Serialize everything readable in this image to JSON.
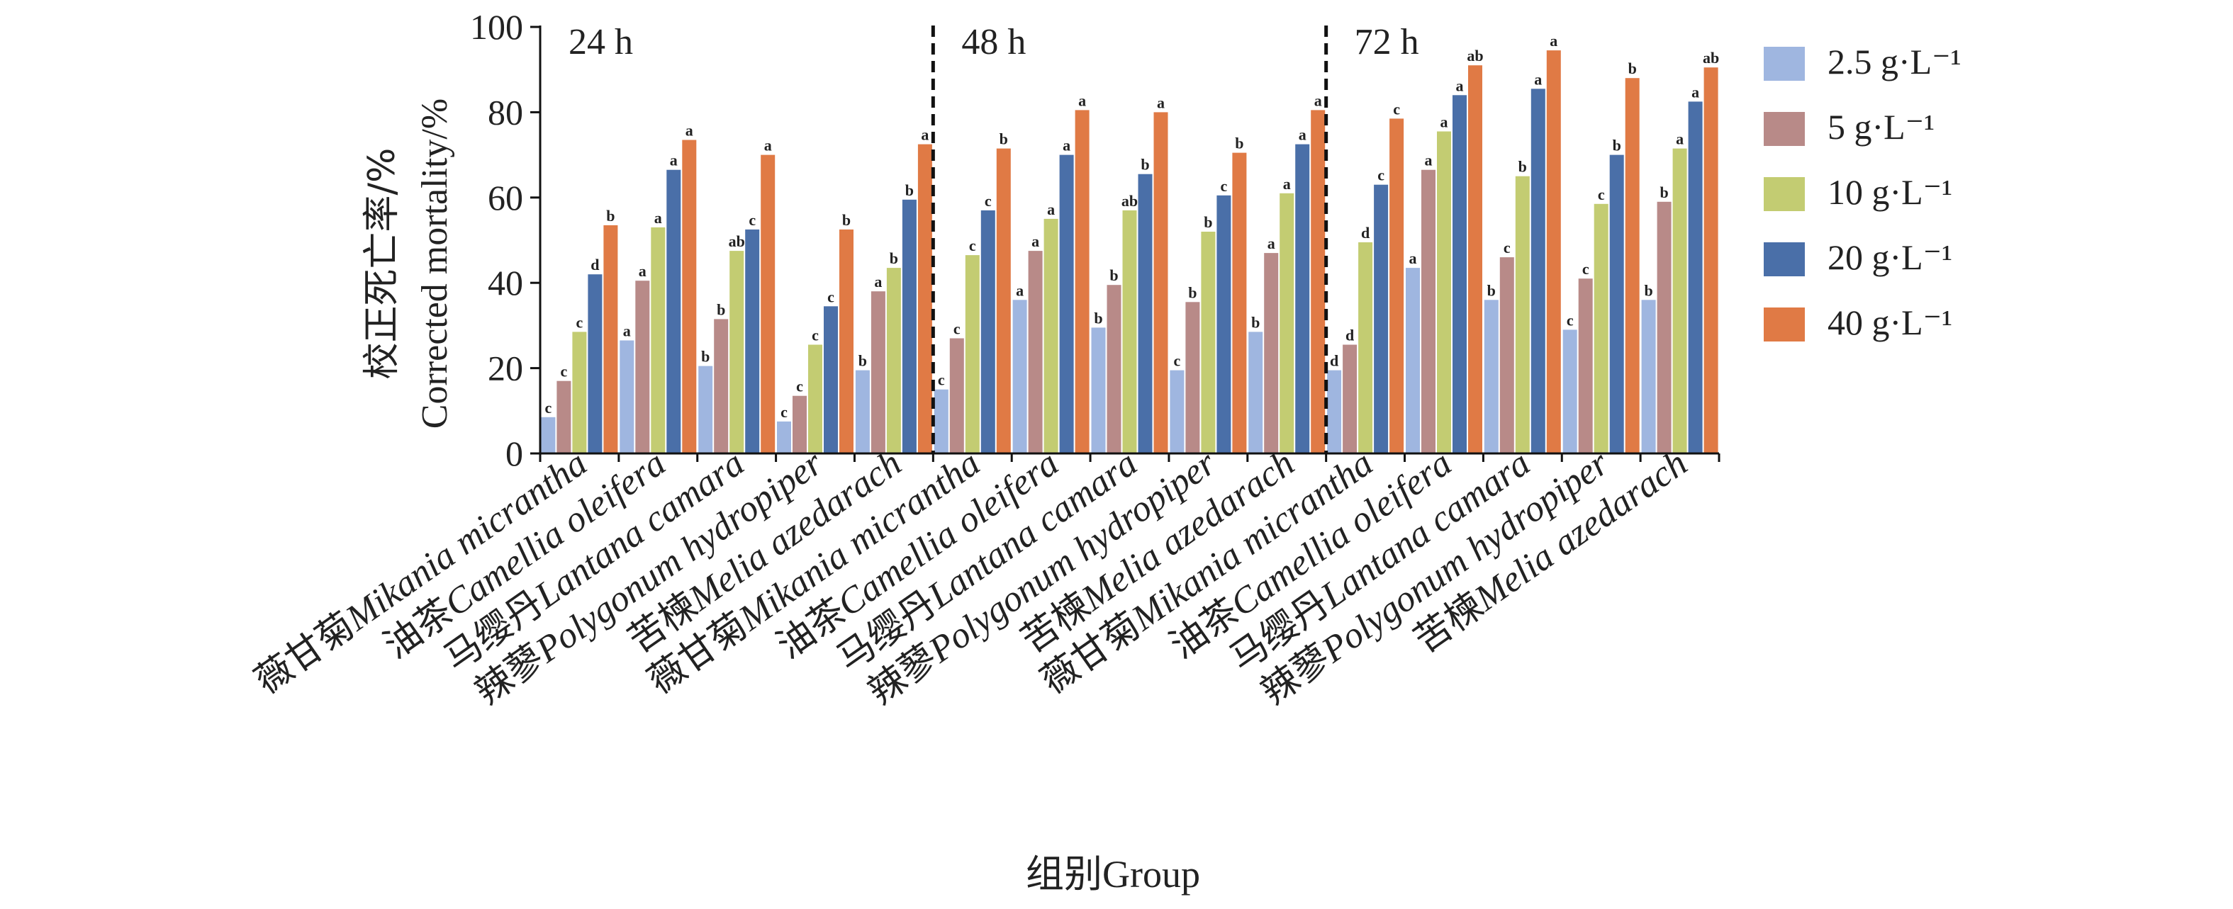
{
  "chart_data": {
    "type": "bar",
    "title": "",
    "ylabel_cn": "校正死亡率/%",
    "ylabel_en": "Corrected mortality/%",
    "xlabel": "组别Group",
    "ylim": [
      0,
      100
    ],
    "yticks": [
      0,
      20,
      40,
      60,
      80,
      100
    ],
    "grid": false,
    "legend_position": "right",
    "panels": [
      "24 h",
      "48 h",
      "72 h"
    ],
    "categories": [
      {
        "cn": "薇甘菊",
        "latin": "Mikania micrantha"
      },
      {
        "cn": "油茶",
        "latin": "Camellia oleifera"
      },
      {
        "cn": "马缨丹",
        "latin": "Lantana camara"
      },
      {
        "cn": "辣蓼",
        "latin": "Polygonum hydropiper"
      },
      {
        "cn": "苦楝",
        "latin": "Melia azedarach"
      },
      {
        "cn": "薇甘菊",
        "latin": "Mikania micrantha"
      },
      {
        "cn": "油茶",
        "latin": "Camellia oleifera"
      },
      {
        "cn": "马缨丹",
        "latin": "Lantana camara"
      },
      {
        "cn": "辣蓼",
        "latin": "Polygonum hydropiper"
      },
      {
        "cn": "苦楝",
        "latin": "Melia azedarach"
      },
      {
        "cn": "薇甘菊",
        "latin": "Mikania micrantha"
      },
      {
        "cn": "油茶",
        "latin": "Camellia oleifera"
      },
      {
        "cn": "马缨丹",
        "latin": "Lantana camara"
      },
      {
        "cn": "辣蓼",
        "latin": "Polygonum hydropiper"
      },
      {
        "cn": "苦楝",
        "latin": "Melia azedarach"
      }
    ],
    "series": [
      {
        "name": "2.5 g·L⁻¹",
        "color": "#9fb6e0",
        "values": [
          8.5,
          26.5,
          20.5,
          7.5,
          19.5,
          15.0,
          36.0,
          29.5,
          19.5,
          28.5,
          19.5,
          43.5,
          36.0,
          29.0,
          36.0
        ],
        "letters": [
          "c",
          "a",
          "b",
          "c",
          "b",
          "c",
          "a",
          "b",
          "c",
          "b",
          "d",
          "a",
          "b",
          "c",
          "b"
        ]
      },
      {
        "name": "5 g·L⁻¹",
        "color": "#b88a88",
        "values": [
          17.0,
          40.5,
          31.5,
          13.5,
          38.0,
          27.0,
          47.5,
          39.5,
          35.5,
          47.0,
          25.5,
          66.5,
          46.0,
          41.0,
          59.0
        ],
        "letters": [
          "c",
          "a",
          "b",
          "c",
          "a",
          "c",
          "a",
          "b",
          "b",
          "a",
          "d",
          "a",
          "c",
          "c",
          "b"
        ]
      },
      {
        "name": "10 g·L⁻¹",
        "color": "#c3cc72",
        "values": [
          28.5,
          53.0,
          47.5,
          25.5,
          43.5,
          46.5,
          55.0,
          57.0,
          52.0,
          61.0,
          49.5,
          75.5,
          65.0,
          58.5,
          71.5
        ],
        "letters": [
          "c",
          "a",
          "ab",
          "c",
          "b",
          "c",
          "a",
          "ab",
          "b",
          "a",
          "d",
          "a",
          "b",
          "c",
          "a"
        ]
      },
      {
        "name": "20 g·L⁻¹",
        "color": "#4a6fa8",
        "values": [
          42.0,
          66.5,
          52.5,
          34.5,
          59.5,
          57.0,
          70.0,
          65.5,
          60.5,
          72.5,
          63.0,
          84.0,
          85.5,
          70.0,
          82.5
        ],
        "letters": [
          "d",
          "a",
          "c",
          "c",
          "b",
          "c",
          "a",
          "b",
          "c",
          "a",
          "c",
          "a",
          "a",
          "b",
          "a"
        ]
      },
      {
        "name": "40 g·L⁻¹",
        "color": "#e07a45",
        "values": [
          53.5,
          73.5,
          70.0,
          52.5,
          72.5,
          71.5,
          80.5,
          80.0,
          70.5,
          80.5,
          78.5,
          91.0,
          94.5,
          88.0,
          90.5
        ],
        "letters": [
          "b",
          "a",
          "a",
          "b",
          "a",
          "b",
          "a",
          "a",
          "b",
          "a",
          "c",
          "ab",
          "a",
          "b",
          "ab"
        ]
      }
    ]
  }
}
